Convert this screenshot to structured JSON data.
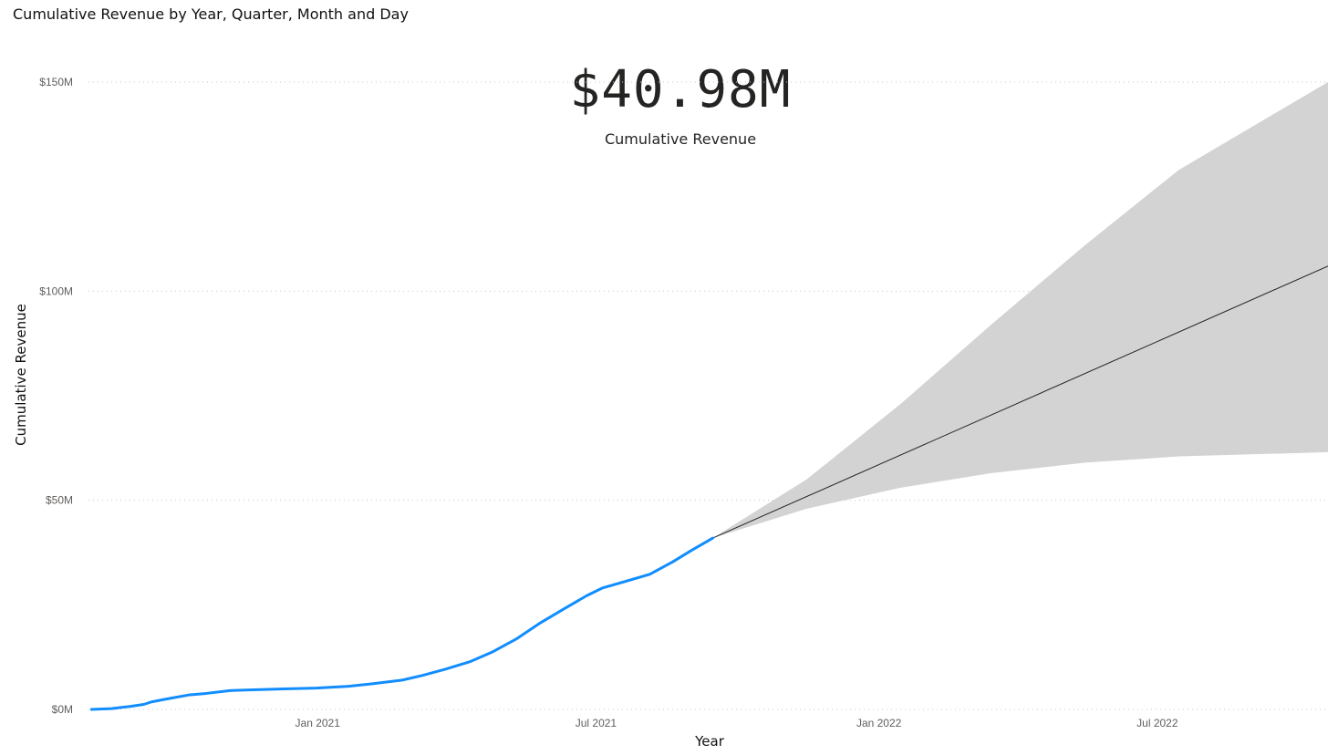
{
  "visual": {
    "title": "Cumulative Revenue by Year, Quarter, Month and Day"
  },
  "card": {
    "value": "$40.98M",
    "label": "Cumulative Revenue"
  },
  "colors": {
    "actual_line": "#118DFF",
    "forecast_line": "#252423",
    "forecast_band": "#D3D3D3",
    "gridline": "#C8C8C8",
    "tick_label": "#605E5C"
  },
  "chart_data": {
    "type": "line",
    "xlabel": "Year",
    "ylabel": "Cumulative Revenue",
    "x_ticks": [
      {
        "date": "2021-01-01",
        "label": "Jan 2021"
      },
      {
        "date": "2021-07-01",
        "label": "Jul 2021"
      },
      {
        "date": "2022-01-01",
        "label": "Jan 2022"
      },
      {
        "date": "2022-07-01",
        "label": "Jul 2022"
      }
    ],
    "y_ticks": [
      {
        "value": 0,
        "label": "$0M"
      },
      {
        "value": 50,
        "label": "$50M"
      },
      {
        "value": 100,
        "label": "$100M"
      },
      {
        "value": 150,
        "label": "$150M"
      }
    ],
    "ylim": [
      0,
      150
    ],
    "xlim": [
      "2020-08-05",
      "2022-10-20"
    ],
    "y_unit": "$M",
    "grid": true,
    "gridline_style": "dotted",
    "series": [
      {
        "role": "actual",
        "points": [
          [
            "2020-08-07",
            0.0
          ],
          [
            "2020-08-20",
            0.2
          ],
          [
            "2020-09-01",
            0.7
          ],
          [
            "2020-09-10",
            1.2
          ],
          [
            "2020-09-15",
            1.8
          ],
          [
            "2020-09-25",
            2.5
          ],
          [
            "2020-10-10",
            3.5
          ],
          [
            "2020-10-20",
            3.8
          ],
          [
            "2020-11-05",
            4.5
          ],
          [
            "2020-11-20",
            4.7
          ],
          [
            "2020-12-10",
            4.9
          ],
          [
            "2020-12-31",
            5.1
          ],
          [
            "2021-01-20",
            5.5
          ],
          [
            "2021-02-05",
            6.1
          ],
          [
            "2021-02-25",
            7.0
          ],
          [
            "2021-03-10",
            8.1
          ],
          [
            "2021-03-25",
            9.6
          ],
          [
            "2021-04-10",
            11.4
          ],
          [
            "2021-04-25",
            13.8
          ],
          [
            "2021-05-10",
            16.8
          ],
          [
            "2021-05-25",
            20.5
          ],
          [
            "2021-06-10",
            24.0
          ],
          [
            "2021-06-25",
            27.2
          ],
          [
            "2021-07-05",
            29.0
          ],
          [
            "2021-07-20",
            30.6
          ],
          [
            "2021-08-05",
            32.3
          ],
          [
            "2021-08-20",
            35.3
          ],
          [
            "2021-09-01",
            38.0
          ],
          [
            "2021-09-15",
            40.98
          ]
        ]
      },
      {
        "role": "forecast",
        "points": [
          [
            "2021-09-15",
            40.98
          ],
          [
            "2022-10-20",
            106.0
          ]
        ],
        "band_upper": [
          [
            "2021-09-15",
            40.98
          ],
          [
            "2021-11-15",
            55.0
          ],
          [
            "2022-01-15",
            73.0
          ],
          [
            "2022-03-15",
            92.0
          ],
          [
            "2022-05-15",
            111.0
          ],
          [
            "2022-07-15",
            129.0
          ],
          [
            "2022-10-20",
            150.0
          ]
        ],
        "band_lower": [
          [
            "2021-09-15",
            40.98
          ],
          [
            "2021-11-15",
            48.0
          ],
          [
            "2022-01-15",
            53.0
          ],
          [
            "2022-03-15",
            56.5
          ],
          [
            "2022-05-15",
            59.0
          ],
          [
            "2022-07-15",
            60.5
          ],
          [
            "2022-10-20",
            61.5
          ]
        ]
      }
    ]
  }
}
